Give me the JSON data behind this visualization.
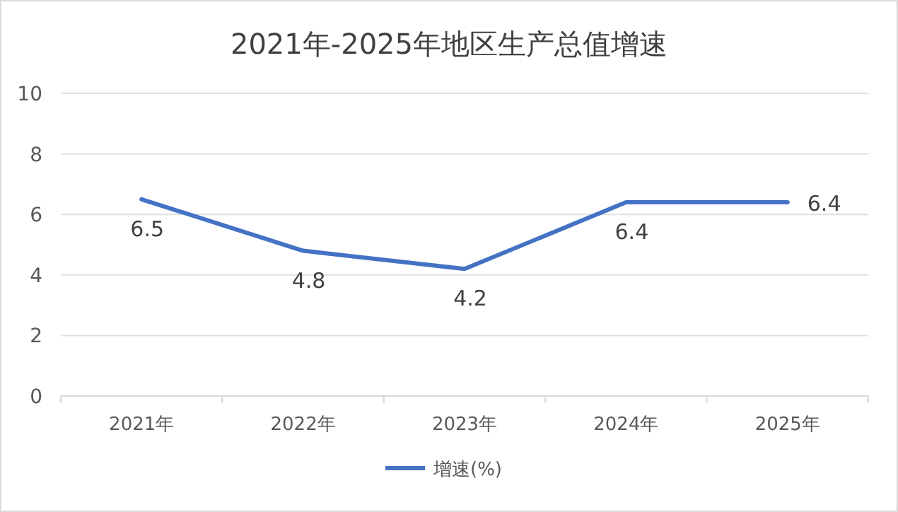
{
  "chart_data": {
    "type": "line",
    "title": "2021年-2025年地区生产总值增速",
    "categories": [
      "2021年",
      "2022年",
      "2023年",
      "2024年",
      "2025年"
    ],
    "series": [
      {
        "name": "增速(%)",
        "color": "#4472c4",
        "values": [
          6.5,
          4.8,
          4.2,
          6.4,
          6.4
        ]
      }
    ],
    "ylim": [
      0,
      10
    ],
    "yticks": [
      0,
      2,
      4,
      6,
      8,
      10
    ],
    "grid": "y",
    "legend": "bottom",
    "data_labels": true
  }
}
